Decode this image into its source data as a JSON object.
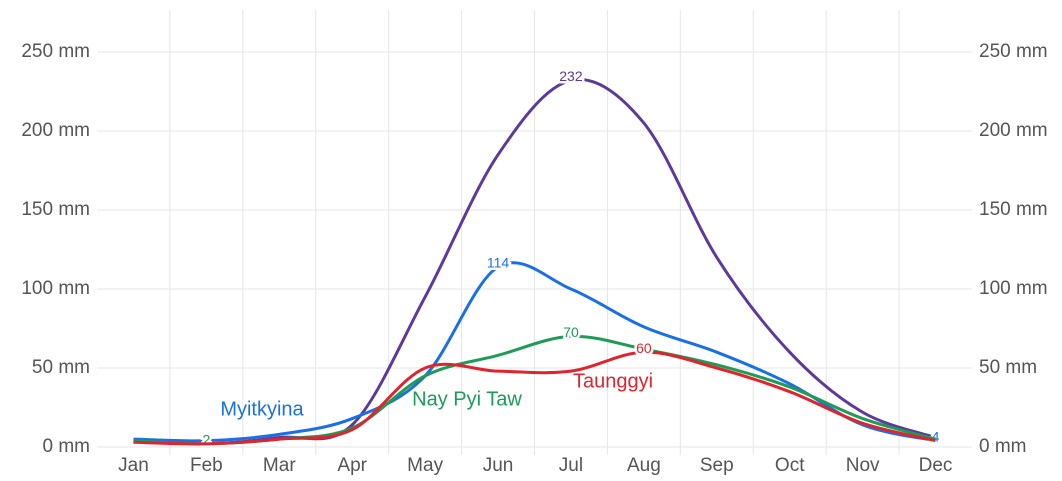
{
  "chart_data": {
    "type": "line",
    "categories": [
      "Jan",
      "Feb",
      "Mar",
      "Apr",
      "May",
      "Jun",
      "Jul",
      "Aug",
      "Sep",
      "Oct",
      "Nov",
      "Dec"
    ],
    "series": [
      {
        "color": "#5b3a9b",
        "values": [
          4,
          2,
          6,
          14,
          95,
          185,
          232,
          205,
          120,
          60,
          22,
          6
        ],
        "value_labels": [
          null,
          "2",
          null,
          null,
          null,
          null,
          "232",
          null,
          null,
          null,
          null,
          null
        ]
      },
      {
        "name": "Myitkyina",
        "color": "#1a6fe6",
        "values": [
          5,
          4,
          8,
          18,
          45,
          114,
          100,
          76,
          60,
          40,
          14,
          4
        ],
        "value_labels": [
          null,
          null,
          null,
          null,
          null,
          "114",
          null,
          null,
          null,
          null,
          null,
          "4"
        ]
      },
      {
        "name": "Nay Pyi Taw",
        "color": "#1d9b57",
        "values": [
          4,
          2,
          5,
          12,
          45,
          58,
          70,
          62,
          52,
          38,
          18,
          5
        ],
        "value_labels": [
          null,
          "2",
          null,
          null,
          null,
          null,
          "70",
          null,
          null,
          null,
          null,
          null
        ]
      },
      {
        "name": "Taunggyi",
        "color": "#e0242e",
        "values": [
          3,
          2,
          5,
          11,
          50,
          48,
          48,
          60,
          50,
          35,
          15,
          4
        ],
        "value_labels": [
          null,
          null,
          null,
          null,
          null,
          null,
          null,
          "60",
          null,
          null,
          null,
          null
        ]
      }
    ],
    "ylim": [
      0,
      250
    ],
    "yticks": [
      {
        "value": 0,
        "label": "0 mm"
      },
      {
        "value": 50,
        "label": "50 mm"
      },
      {
        "value": 100,
        "label": "100 mm"
      },
      {
        "value": 150,
        "label": "150 mm"
      },
      {
        "value": 200,
        "label": "200 mm"
      },
      {
        "value": 250,
        "label": "250 mm"
      }
    ],
    "grid": true
  }
}
